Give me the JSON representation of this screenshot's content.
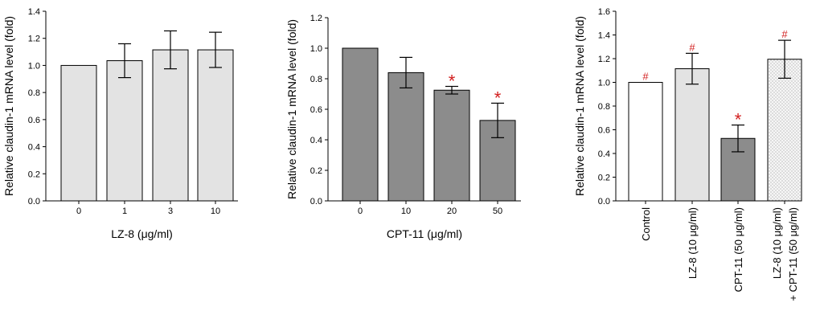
{
  "chart_data": [
    {
      "type": "bar",
      "title": "",
      "xlabel": "LZ-8 (μg/ml)",
      "ylabel": "Relative claudin-1 mRNA level (fold)",
      "ylim": [
        0,
        1.4
      ],
      "yticks": [
        "0.0",
        "0.2",
        "0.4",
        "0.6",
        "0.8",
        "1.0",
        "1.2",
        "1.4"
      ],
      "categories": [
        "0",
        "1",
        "3",
        "10"
      ],
      "values": [
        1.0,
        1.035,
        1.115,
        1.115
      ],
      "errors": [
        0.0,
        0.125,
        0.14,
        0.13
      ],
      "markers": [
        "",
        "",
        "",
        ""
      ],
      "fills": [
        "light",
        "light",
        "light",
        "light"
      ]
    },
    {
      "type": "bar",
      "title": "",
      "xlabel": "CPT-11 (μg/ml)",
      "ylabel": "Relative claudin-1 mRNA level (fold)",
      "ylim": [
        0,
        1.2
      ],
      "yticks": [
        "0.0",
        "0.2",
        "0.4",
        "0.6",
        "0.8",
        "1.0",
        "1.2"
      ],
      "categories": [
        "0",
        "10",
        "20",
        "50"
      ],
      "values": [
        1.0,
        0.84,
        0.725,
        0.527
      ],
      "errors": [
        0.0,
        0.1,
        0.025,
        0.113
      ],
      "markers": [
        "",
        "",
        "*",
        "*"
      ],
      "fills": [
        "dark",
        "dark",
        "dark",
        "dark"
      ]
    },
    {
      "type": "bar",
      "title": "",
      "xlabel": "",
      "ylabel": "Relative claudin-1 mRNA level (fold)",
      "ylim": [
        0,
        1.6
      ],
      "yticks": [
        "0.0",
        "0.2",
        "0.4",
        "0.6",
        "0.8",
        "1.0",
        "1.2",
        "1.4",
        "1.6"
      ],
      "categories": [
        [
          "Control"
        ],
        [
          "LZ-8 (10 μg/ml)"
        ],
        [
          "CPT-11 (50 μg/ml)"
        ],
        [
          "LZ-8 (10 μg/ml)",
          "+ CPT-11 (50 μg/ml)"
        ]
      ],
      "values": [
        1.0,
        1.115,
        0.527,
        1.195
      ],
      "errors": [
        0.0,
        0.13,
        0.113,
        0.16
      ],
      "markers": [
        "#",
        "#",
        "*",
        "#"
      ],
      "fills": [
        "white",
        "light",
        "dark",
        "dotted"
      ]
    }
  ]
}
